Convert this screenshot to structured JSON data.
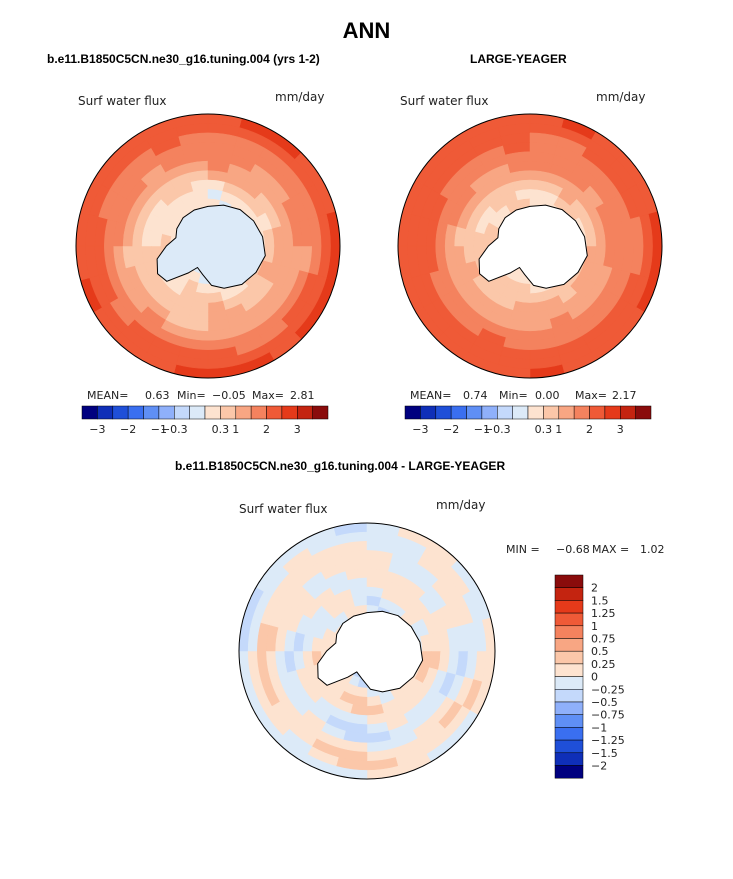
{
  "title": "ANN",
  "colors": {
    "levels": [
      "#00007f",
      "#0f2fb8",
      "#1f4fd8",
      "#3a6ff0",
      "#5f8ff5",
      "#8fb0fa",
      "#c4d9fb",
      "#dceaf8",
      "#fde3d0",
      "#fbc7a9",
      "#f8a683",
      "#f4825e",
      "#ef5a37",
      "#e53a1a",
      "#c42410",
      "#8a0c0c"
    ],
    "land": "#ffffff",
    "outline": "#000000"
  },
  "chart_data": [
    {
      "type": "heatmap",
      "projection": "south-polar-stereographic",
      "title": "b.e11.B1850C5CN.ne30_g16.tuning.004 (yrs 1-2)",
      "variable": "Surf water flux",
      "units": "mm/day",
      "stats": {
        "mean_label": "MEAN=",
        "mean": "0.63",
        "min_label": "Min=",
        "min": "−0.05",
        "max_label": "Max=",
        "max": "2.81"
      },
      "colorbar_ticks": [
        "−3",
        "−2",
        "−1",
        "−0.3",
        "0.3",
        "1",
        "2",
        "3"
      ],
      "ice_shelf_fill": true,
      "zonal_profile": [
        {
          "colat": 0.0,
          "value": 0.05
        },
        {
          "colat": 0.3,
          "value": 0.05
        },
        {
          "colat": 0.45,
          "value": 0.25
        },
        {
          "colat": 0.58,
          "value": 0.6
        },
        {
          "colat": 0.72,
          "value": 1.0
        },
        {
          "colat": 0.86,
          "value": 1.5
        },
        {
          "colat": 1.0,
          "value": 2.0
        }
      ]
    },
    {
      "type": "heatmap",
      "projection": "south-polar-stereographic",
      "title": "LARGE-YEAGER",
      "variable": "Surf water flux",
      "units": "mm/day",
      "stats": {
        "mean_label": "MEAN=",
        "mean": "0.74",
        "min_label": "Min=",
        "min": "0.00",
        "max_label": "Max=",
        "max": "2.17"
      },
      "colorbar_ticks": [
        "−3",
        "−2",
        "−1",
        "−0.3",
        "0.3",
        "1",
        "2",
        "3"
      ],
      "ice_shelf_fill": false,
      "zonal_profile": [
        {
          "colat": 0.0,
          "value": 0.0
        },
        {
          "colat": 0.3,
          "value": 0.2
        },
        {
          "colat": 0.45,
          "value": 0.4
        },
        {
          "colat": 0.58,
          "value": 0.8
        },
        {
          "colat": 0.72,
          "value": 1.2
        },
        {
          "colat": 0.86,
          "value": 1.6
        },
        {
          "colat": 1.0,
          "value": 1.9
        }
      ]
    },
    {
      "type": "heatmap",
      "projection": "south-polar-stereographic",
      "title": "b.e11.B1850C5CN.ne30_g16.tuning.004 - LARGE-YEAGER",
      "variable": "Surf water flux",
      "units": "mm/day",
      "stats": {
        "min_label": "MIN =",
        "min": "−0.68",
        "max_label": "MAX =",
        "max": "1.02"
      },
      "colorbar_levels": [
        "2",
        "1.5",
        "1.25",
        "1",
        "0.75",
        "0.5",
        "0.25",
        "0",
        "−0.25",
        "−0.5",
        "−0.75",
        "−1",
        "−1.25",
        "−1.5",
        "−2"
      ],
      "zonal_profile": [
        {
          "colat": 0.0,
          "value": 0.0
        },
        {
          "colat": 0.3,
          "value": -0.1
        },
        {
          "colat": 0.5,
          "value": 0.1
        },
        {
          "colat": 0.7,
          "value": -0.1
        },
        {
          "colat": 0.85,
          "value": 0.15
        },
        {
          "colat": 1.0,
          "value": -0.05
        }
      ]
    }
  ]
}
